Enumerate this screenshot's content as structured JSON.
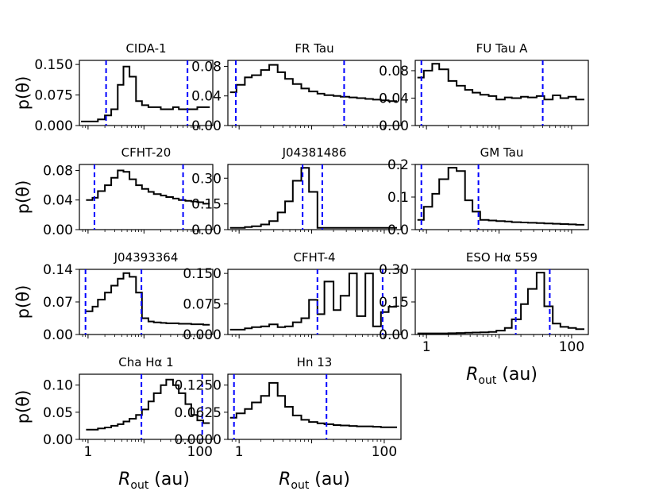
{
  "chart_data": {
    "type": "step",
    "xscale": "log",
    "xlim": [
      0.7,
      170
    ],
    "xlabel": "R",
    "xlabel_sub": "out",
    "xlabel_unit": " (au)",
    "ylabel": "p(θ)",
    "line_color": "#000000",
    "marker_color": "#0000ff",
    "panels": [
      {
        "title": "CIDA-1",
        "ylim": [
          0,
          0.16
        ],
        "yticks": [
          0,
          0.075,
          0.15
        ],
        "yticklabels": [
          "0.000",
          "0.075",
          "0.150"
        ],
        "xticks": [],
        "xticklabels": [],
        "show_ylabel": true,
        "edges": [
          0.75,
          1.2,
          1.5,
          2.0,
          2.6,
          3.4,
          4.3,
          5.5,
          7.2,
          9.2,
          12,
          15,
          20,
          25,
          33,
          42,
          55,
          70,
          90,
          115,
          150
        ],
        "values": [
          0.01,
          0.01,
          0.015,
          0.025,
          0.04,
          0.1,
          0.145,
          0.12,
          0.06,
          0.05,
          0.045,
          0.045,
          0.04,
          0.04,
          0.045,
          0.04,
          0.04,
          0.04,
          0.045,
          0.045
        ],
        "lines": [
          2.1,
          60
        ]
      },
      {
        "title": "FR Tau",
        "ylim": [
          0,
          0.088
        ],
        "yticks": [
          0,
          0.04,
          0.08
        ],
        "yticklabels": [
          "0.00",
          "0.04",
          "0.08"
        ],
        "xticks": [],
        "xticklabels": [],
        "show_ylabel": false,
        "edges": [
          0.75,
          0.92,
          1.2,
          1.5,
          2.0,
          2.6,
          3.4,
          4.3,
          5.5,
          7.2,
          9.2,
          12,
          15,
          20,
          25,
          33,
          42,
          55,
          70,
          90,
          115,
          150
        ],
        "values": [
          0.045,
          0.055,
          0.065,
          0.068,
          0.075,
          0.082,
          0.072,
          0.063,
          0.056,
          0.05,
          0.046,
          0.043,
          0.041,
          0.04,
          0.039,
          0.038,
          0.037,
          0.036,
          0.035,
          0.034,
          0.033
        ],
        "lines": [
          0.9,
          28
        ]
      },
      {
        "title": "FU Tau A",
        "ylim": [
          0,
          0.095
        ],
        "yticks": [
          0,
          0.04,
          0.08
        ],
        "yticklabels": [
          "0.00",
          "0.04",
          "0.08"
        ],
        "xticks": [],
        "xticklabels": [],
        "show_ylabel": false,
        "edges": [
          0.75,
          0.92,
          1.2,
          1.5,
          2.0,
          2.6,
          3.4,
          4.3,
          5.5,
          7.2,
          9.2,
          12,
          15,
          20,
          25,
          33,
          42,
          55,
          70,
          90,
          115,
          150
        ],
        "values": [
          0.07,
          0.08,
          0.09,
          0.082,
          0.065,
          0.058,
          0.052,
          0.048,
          0.045,
          0.043,
          0.038,
          0.041,
          0.04,
          0.042,
          0.041,
          0.043,
          0.038,
          0.044,
          0.04,
          0.042,
          0.038
        ],
        "lines": [
          0.85,
          40
        ]
      },
      {
        "title": "CFHT-20",
        "ylim": [
          0,
          0.088
        ],
        "yticks": [
          0,
          0.04,
          0.08
        ],
        "yticklabels": [
          "0.00",
          "0.04",
          "0.08"
        ],
        "xticks": [],
        "xticklabels": [],
        "show_ylabel": true,
        "edges": [
          0.92,
          1.2,
          1.5,
          2.0,
          2.6,
          3.4,
          4.3,
          5.5,
          7.2,
          9.2,
          12,
          15,
          20,
          25,
          33,
          42,
          55,
          70,
          90,
          115,
          150
        ],
        "values": [
          0.04,
          0.043,
          0.052,
          0.06,
          0.07,
          0.08,
          0.078,
          0.068,
          0.06,
          0.055,
          0.051,
          0.048,
          0.046,
          0.044,
          0.042,
          0.04,
          0.039,
          0.038,
          0.037,
          0.035
        ],
        "lines": [
          1.3,
          50
        ]
      },
      {
        "title": "J04381486",
        "ylim": [
          0,
          0.38
        ],
        "yticks": [
          0,
          0.15,
          0.3
        ],
        "yticklabels": [
          "0.00",
          "0.15",
          "0.30"
        ],
        "xticks": [],
        "xticklabels": [],
        "show_ylabel": false,
        "edges": [
          0.75,
          1.2,
          1.5,
          2.0,
          2.6,
          3.4,
          4.3,
          5.5,
          7.2,
          9.2,
          12,
          15,
          20,
          25,
          33,
          42,
          55,
          70,
          90,
          115,
          150
        ],
        "values": [
          0.01,
          0.015,
          0.02,
          0.03,
          0.05,
          0.1,
          0.165,
          0.285,
          0.36,
          0.22,
          0.01,
          0.01,
          0.01,
          0.01,
          0.01,
          0.01,
          0.01,
          0.01,
          0.01,
          0.01
        ],
        "lines": [
          7.5,
          14
        ]
      },
      {
        "title": "GM Tau",
        "ylim": [
          0,
          0.2
        ],
        "yticks": [
          0,
          0.1,
          0.2
        ],
        "yticklabels": [
          "0.0",
          "0.1",
          "0.2"
        ],
        "xticks": [],
        "xticklabels": [],
        "show_ylabel": false,
        "edges": [
          0.75,
          0.92,
          1.2,
          1.5,
          2.0,
          2.6,
          3.4,
          4.3,
          5.5,
          7.2,
          9.2,
          12,
          15,
          20,
          25,
          33,
          42,
          55,
          70,
          90,
          115,
          150
        ],
        "values": [
          0.03,
          0.07,
          0.11,
          0.155,
          0.19,
          0.18,
          0.09,
          0.055,
          0.03,
          0.028,
          0.026,
          0.025,
          0.023,
          0.022,
          0.021,
          0.02,
          0.019,
          0.018,
          0.017,
          0.016,
          0.015
        ],
        "lines": [
          0.85,
          5.2
        ]
      },
      {
        "title": "J04393364",
        "ylim": [
          0,
          0.14
        ],
        "yticks": [
          0,
          0.07,
          0.14
        ],
        "yticklabels": [
          "0.00",
          "0.07",
          "0.14"
        ],
        "xticks": [],
        "xticklabels": [],
        "show_ylabel": true,
        "edges": [
          0.92,
          1.2,
          1.5,
          2.0,
          2.6,
          3.4,
          4.3,
          5.5,
          7.2,
          9.2,
          12,
          15,
          20,
          25,
          33,
          42,
          55,
          70,
          90,
          115,
          150
        ],
        "values": [
          0.05,
          0.06,
          0.075,
          0.09,
          0.105,
          0.12,
          0.132,
          0.124,
          0.09,
          0.035,
          0.028,
          0.026,
          0.025,
          0.024,
          0.024,
          0.023,
          0.023,
          0.022,
          0.022,
          0.021
        ],
        "lines": [
          0.9,
          9.0
        ]
      },
      {
        "title": "CFHT-4",
        "ylim": [
          0,
          0.16
        ],
        "yticks": [
          0,
          0.075,
          0.15
        ],
        "yticklabels": [
          "0.000",
          "0.075",
          "0.150"
        ],
        "xticks": [],
        "xticklabels": [],
        "show_ylabel": false,
        "edges": [
          0.75,
          1.2,
          1.5,
          2.0,
          2.6,
          3.4,
          4.3,
          5.5,
          7.2,
          9.2,
          12,
          15,
          20,
          25,
          33,
          42,
          55,
          70,
          90,
          115,
          150
        ],
        "values": [
          0.012,
          0.015,
          0.018,
          0.02,
          0.025,
          0.018,
          0.02,
          0.03,
          0.04,
          0.085,
          0.05,
          0.13,
          0.06,
          0.095,
          0.15,
          0.045,
          0.15,
          0.02,
          0.055,
          0.068
        ],
        "lines": [
          12,
          95
        ]
      },
      {
        "title": "ESO Hα 559",
        "ylim": [
          0,
          0.3
        ],
        "yticks": [
          0,
          0.15,
          0.3
        ],
        "yticklabels": [
          "0.00",
          "0.15",
          "0.30"
        ],
        "xticks": [
          1,
          100
        ],
        "xticklabels": [
          "1",
          "100"
        ],
        "show_ylabel": false,
        "edges": [
          0.75,
          1.2,
          1.5,
          2.0,
          2.6,
          3.4,
          4.3,
          5.5,
          7.2,
          9.2,
          12,
          15,
          20,
          25,
          33,
          42,
          55,
          70,
          90,
          115,
          150
        ],
        "values": [
          0.005,
          0.005,
          0.005,
          0.006,
          0.007,
          0.008,
          0.009,
          0.01,
          0.012,
          0.018,
          0.03,
          0.07,
          0.14,
          0.21,
          0.285,
          0.13,
          0.05,
          0.035,
          0.03,
          0.025
        ],
        "lines": [
          17,
          50
        ]
      },
      {
        "title": "Cha Hα 1",
        "ylim": [
          0,
          0.12
        ],
        "yticks": [
          0,
          0.05,
          0.1
        ],
        "yticklabels": [
          "0.00",
          "0.05",
          "0.10"
        ],
        "xticks": [
          1,
          100
        ],
        "xticklabels": [
          "1",
          "100"
        ],
        "show_ylabel": true,
        "edges": [
          0.92,
          1.2,
          1.5,
          2.0,
          2.6,
          3.4,
          4.3,
          5.5,
          7.2,
          9.2,
          12,
          15,
          20,
          25,
          33,
          42,
          55,
          70,
          90,
          115,
          150
        ],
        "values": [
          0.018,
          0.018,
          0.02,
          0.022,
          0.025,
          0.028,
          0.033,
          0.038,
          0.045,
          0.055,
          0.07,
          0.085,
          0.1,
          0.11,
          0.1,
          0.085,
          0.065,
          0.045,
          0.035,
          0.03
        ],
        "lines": [
          9.0,
          110
        ]
      },
      {
        "title": "Hn 13",
        "ylim": [
          0,
          0.15
        ],
        "yticks": [
          0,
          0.0625,
          0.125
        ],
        "yticklabels": [
          "0.0000",
          "0.0625",
          "0.1250"
        ],
        "xticks": [
          1,
          100
        ],
        "xticklabels": [
          "1",
          "100"
        ],
        "show_ylabel": false,
        "edges": [
          0.75,
          0.92,
          1.2,
          1.5,
          2.0,
          2.6,
          3.4,
          4.3,
          5.5,
          7.2,
          9.2,
          12,
          15,
          20,
          25,
          33,
          42,
          55,
          70,
          90,
          115,
          150
        ],
        "values": [
          0.05,
          0.06,
          0.07,
          0.085,
          0.1,
          0.13,
          0.1,
          0.075,
          0.055,
          0.045,
          0.04,
          0.037,
          0.035,
          0.033,
          0.032,
          0.031,
          0.03,
          0.03,
          0.029,
          0.028,
          0.028
        ],
        "lines": [
          0.85,
          16
        ]
      }
    ]
  }
}
